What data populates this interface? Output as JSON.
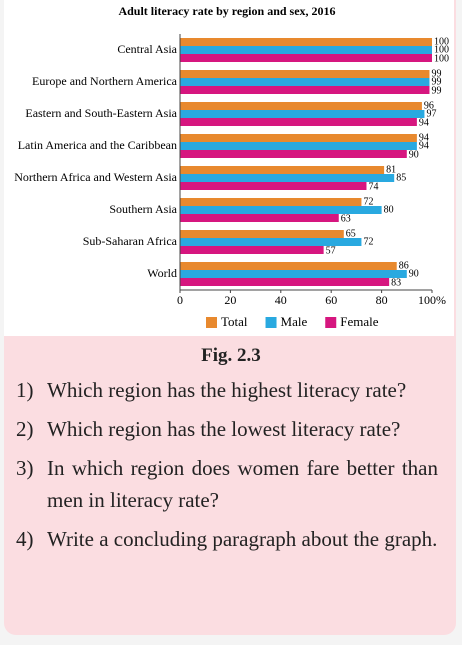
{
  "chart_data": {
    "type": "bar",
    "orientation": "horizontal",
    "title": "Adult literacy rate by region and sex, 2016",
    "categories": [
      "Central Asia",
      "Europe and Northern America",
      "Eastern and South-Eastern Asia",
      "Latin America and the Caribbean",
      "Northern Africa and Western Asia",
      "Southern Asia",
      "Sub-Saharan Africa",
      "World"
    ],
    "series": [
      {
        "name": "Total",
        "color": "#e8892e",
        "values": [
          100,
          99,
          96,
          94,
          81,
          72,
          65,
          86
        ]
      },
      {
        "name": "Male",
        "color": "#29a9e0",
        "values": [
          100,
          99,
          97,
          94,
          85,
          80,
          72,
          90
        ]
      },
      {
        "name": "Female",
        "color": "#d6167f",
        "values": [
          100,
          99,
          94,
          90,
          74,
          63,
          57,
          83
        ]
      }
    ],
    "xlim": [
      0,
      100
    ],
    "xticks": [
      0,
      20,
      40,
      60,
      80,
      {
        "value": 100,
        "label": "100%"
      }
    ],
    "legend": "bottom"
  },
  "caption": "Fig. 2.3",
  "questions": [
    {
      "number": "1)",
      "text": "Which region has the highest literacy rate?"
    },
    {
      "number": "2)",
      "text": "Which region has the lowest literacy rate?"
    },
    {
      "number": "3)",
      "text": "In which region does women fare better than men in literacy rate?"
    },
    {
      "number": "4)",
      "text": "Write a concluding paragraph about the graph."
    }
  ]
}
